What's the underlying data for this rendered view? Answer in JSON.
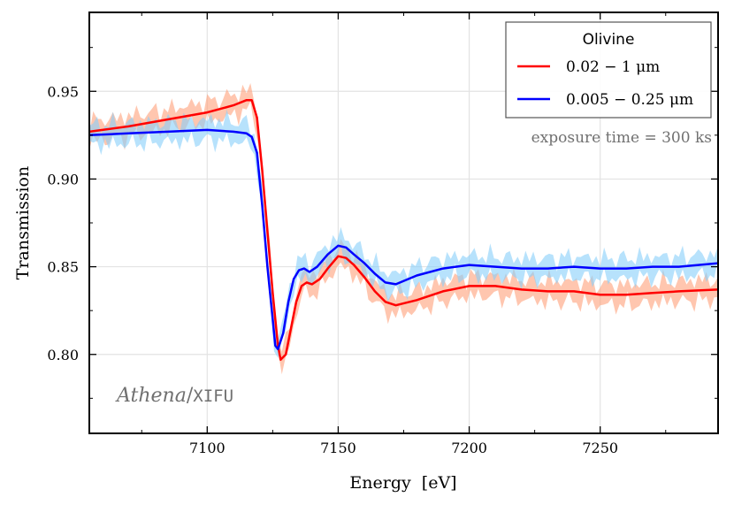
{
  "chart_data": {
    "type": "line",
    "title": "",
    "xlabel": "Energy  [eV]",
    "ylabel": "Transmission",
    "xlim": [
      7055,
      7295
    ],
    "ylim": [
      0.755,
      0.995
    ],
    "x_ticks": [
      7100,
      7150,
      7200,
      7250
    ],
    "x_tick_labels": [
      "7100",
      "7150",
      "7200",
      "7250"
    ],
    "y_ticks": [
      0.8,
      0.85,
      0.9,
      0.95
    ],
    "y_tick_labels": [
      "0.80",
      "0.85",
      "0.90",
      "0.95"
    ],
    "grid": true,
    "legend": {
      "title": "Olivine",
      "placement": "top-right",
      "entries": [
        "0.02 − 1 μm",
        "0.005 − 0.25 μm"
      ]
    },
    "annotations": {
      "exposure": "exposure time = 300 ks",
      "instrument_italic": "Athena",
      "instrument_sep": "/",
      "instrument_mono": "XIFU"
    },
    "series": [
      {
        "name": "0.02 − 1 μm",
        "color": "#ff0000",
        "band_color": "#ffa07a",
        "x": [
          7055,
          7070,
          7085,
          7100,
          7110,
          7115,
          7117,
          7119,
          7121,
          7123,
          7125,
          7127,
          7128,
          7130,
          7132,
          7134,
          7136,
          7138,
          7140,
          7143,
          7146,
          7150,
          7153,
          7156,
          7160,
          7164,
          7168,
          7172,
          7180,
          7190,
          7200,
          7210,
          7220,
          7230,
          7240,
          7250,
          7260,
          7270,
          7280,
          7295
        ],
        "y": [
          0.927,
          0.93,
          0.934,
          0.938,
          0.942,
          0.945,
          0.945,
          0.935,
          0.905,
          0.87,
          0.835,
          0.805,
          0.797,
          0.8,
          0.815,
          0.83,
          0.839,
          0.841,
          0.84,
          0.843,
          0.849,
          0.856,
          0.855,
          0.851,
          0.844,
          0.836,
          0.83,
          0.828,
          0.831,
          0.836,
          0.839,
          0.839,
          0.837,
          0.836,
          0.836,
          0.834,
          0.834,
          0.835,
          0.836,
          0.837
        ]
      },
      {
        "name": "0.005 − 0.25 μm",
        "color": "#0000ff",
        "band_color": "#87cefa",
        "x": [
          7055,
          7070,
          7085,
          7100,
          7110,
          7115,
          7117,
          7119,
          7121,
          7123,
          7125,
          7126,
          7127,
          7129,
          7131,
          7133,
          7135,
          7137,
          7139,
          7142,
          7146,
          7150,
          7153,
          7156,
          7160,
          7164,
          7168,
          7172,
          7180,
          7190,
          7200,
          7210,
          7220,
          7230,
          7240,
          7250,
          7260,
          7270,
          7280,
          7295
        ],
        "y": [
          0.925,
          0.926,
          0.927,
          0.928,
          0.927,
          0.926,
          0.924,
          0.915,
          0.885,
          0.85,
          0.82,
          0.805,
          0.803,
          0.812,
          0.83,
          0.843,
          0.848,
          0.849,
          0.847,
          0.85,
          0.857,
          0.862,
          0.861,
          0.857,
          0.852,
          0.846,
          0.841,
          0.84,
          0.845,
          0.849,
          0.851,
          0.85,
          0.849,
          0.849,
          0.85,
          0.849,
          0.849,
          0.85,
          0.85,
          0.852
        ]
      }
    ]
  }
}
